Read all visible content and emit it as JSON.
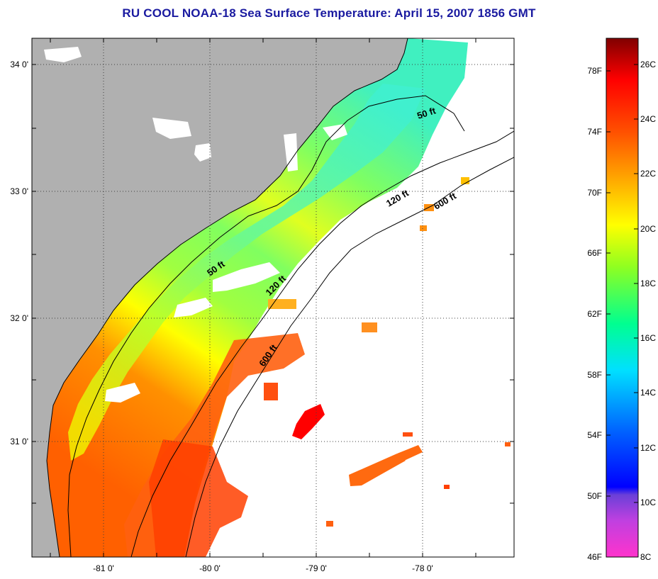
{
  "title": "RU COOL  NOAA-18  Sea Surface Temperature:  April 15, 2007 1856 GMT",
  "map": {
    "lat_labels": [
      "34 0'",
      "33 0'",
      "32 0'",
      "31 0'"
    ],
    "lon_labels": [
      "-81 0'",
      "-80 0'",
      "-79 0'",
      "-78 0'"
    ],
    "lat_range": [
      30.1,
      34.2
    ],
    "lon_range": [
      -81.7,
      -77.25
    ],
    "contours": [
      "50 ft",
      "120 ft",
      "600 ft",
      "50 ft",
      "120 ft",
      "600 ft"
    ],
    "colors": {
      "land": "#b0b0b0",
      "cloud": "#ffffff",
      "coastline": "#000000",
      "grid": "#404040"
    }
  },
  "colorbar": {
    "fahrenheit_labels": [
      "78F",
      "74F",
      "70F",
      "66F",
      "62F",
      "58F",
      "54F",
      "50F",
      "46F"
    ],
    "celsius_labels": [
      "26C",
      "24C",
      "22C",
      "20C",
      "18C",
      "16C",
      "14C",
      "12C",
      "10C",
      "8C"
    ],
    "range_c": [
      8,
      27
    ],
    "stops": [
      "#ff33cc",
      "#8040e0",
      "#0000ff",
      "#0080ff",
      "#00ffff",
      "#00ff80",
      "#80ff00",
      "#ffff00",
      "#ffb000",
      "#ff6000",
      "#ff0000",
      "#800000"
    ]
  }
}
